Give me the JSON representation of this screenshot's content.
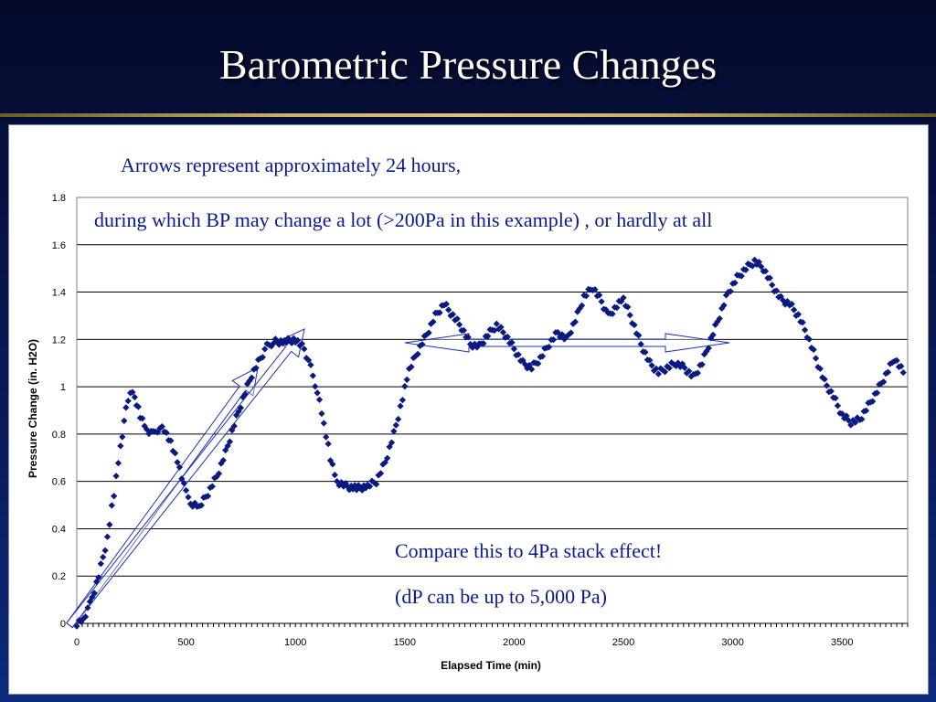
{
  "slide": {
    "title": "Barometric Pressure Changes"
  },
  "annotations": {
    "line1": "Arrows represent approximately 24 hours,",
    "line2": "during which BP may change a lot (>200Pa in this example) , or hardly at all",
    "compare": "Compare this to 4Pa stack effect!",
    "dp": "(dP can be up to 5,000 Pa)"
  },
  "colors": {
    "series": "#0a1a80",
    "annotation_text": "#0a1a90",
    "arrow": "#1e2fb0",
    "grid": "#000000"
  },
  "chart_data": {
    "type": "scatter",
    "xlabel": "Elapsed Time (min)",
    "ylabel": "Pressure Change (in. H2O)",
    "xlim": [
      0,
      3800
    ],
    "ylim": [
      0,
      1.8
    ],
    "x_ticks": [
      0,
      500,
      1000,
      1500,
      2000,
      2500,
      3000,
      3500
    ],
    "x_tick_labels": [
      "0",
      "500",
      "1000",
      "1500",
      "2000",
      "2500",
      "3000",
      "3500"
    ],
    "y_ticks": [
      0,
      0.2,
      0.4,
      0.6,
      0.8,
      1.0,
      1.2,
      1.4,
      1.6,
      1.8
    ],
    "y_tick_labels": [
      "0",
      "0.2",
      "0.4",
      "0.6",
      "0.8",
      "1",
      "1.2",
      "1.4",
      "1.6",
      "1.8"
    ],
    "grid": "horizontal",
    "marker": "diamond",
    "series": [
      {
        "values_xy": [
          [
            0,
            0
          ],
          [
            30,
            0.02
          ],
          [
            60,
            0.08
          ],
          [
            100,
            0.2
          ],
          [
            140,
            0.36
          ],
          [
            170,
            0.55
          ],
          [
            200,
            0.75
          ],
          [
            225,
            0.9
          ],
          [
            245,
            0.98
          ],
          [
            265,
            0.95
          ],
          [
            290,
            0.88
          ],
          [
            320,
            0.82
          ],
          [
            350,
            0.8
          ],
          [
            380,
            0.83
          ],
          [
            410,
            0.8
          ],
          [
            440,
            0.74
          ],
          [
            470,
            0.66
          ],
          [
            500,
            0.55
          ],
          [
            530,
            0.5
          ],
          [
            560,
            0.49
          ],
          [
            600,
            0.55
          ],
          [
            640,
            0.62
          ],
          [
            680,
            0.72
          ],
          [
            720,
            0.84
          ],
          [
            760,
            0.95
          ],
          [
            800,
            1.05
          ],
          [
            840,
            1.12
          ],
          [
            870,
            1.17
          ],
          [
            900,
            1.19
          ],
          [
            950,
            1.19
          ],
          [
            1000,
            1.2
          ],
          [
            1040,
            1.16
          ],
          [
            1070,
            1.08
          ],
          [
            1100,
            0.98
          ],
          [
            1130,
            0.84
          ],
          [
            1160,
            0.7
          ],
          [
            1190,
            0.6
          ],
          [
            1230,
            0.58
          ],
          [
            1280,
            0.57
          ],
          [
            1330,
            0.58
          ],
          [
            1370,
            0.6
          ],
          [
            1410,
            0.68
          ],
          [
            1450,
            0.8
          ],
          [
            1490,
            0.95
          ],
          [
            1520,
            1.07
          ],
          [
            1560,
            1.15
          ],
          [
            1600,
            1.22
          ],
          [
            1640,
            1.3
          ],
          [
            1680,
            1.35
          ],
          [
            1720,
            1.3
          ],
          [
            1760,
            1.25
          ],
          [
            1800,
            1.18
          ],
          [
            1840,
            1.17
          ],
          [
            1880,
            1.22
          ],
          [
            1920,
            1.26
          ],
          [
            1960,
            1.22
          ],
          [
            2000,
            1.16
          ],
          [
            2040,
            1.1
          ],
          [
            2080,
            1.08
          ],
          [
            2120,
            1.12
          ],
          [
            2160,
            1.18
          ],
          [
            2200,
            1.23
          ],
          [
            2240,
            1.2
          ],
          [
            2280,
            1.28
          ],
          [
            2320,
            1.38
          ],
          [
            2360,
            1.42
          ],
          [
            2400,
            1.36
          ],
          [
            2430,
            1.3
          ],
          [
            2470,
            1.34
          ],
          [
            2500,
            1.37
          ],
          [
            2540,
            1.28
          ],
          [
            2580,
            1.18
          ],
          [
            2620,
            1.1
          ],
          [
            2660,
            1.06
          ],
          [
            2700,
            1.08
          ],
          [
            2740,
            1.1
          ],
          [
            2780,
            1.08
          ],
          [
            2820,
            1.04
          ],
          [
            2860,
            1.1
          ],
          [
            2900,
            1.2
          ],
          [
            2940,
            1.3
          ],
          [
            2980,
            1.4
          ],
          [
            3020,
            1.46
          ],
          [
            3060,
            1.5
          ],
          [
            3100,
            1.53
          ],
          [
            3140,
            1.5
          ],
          [
            3180,
            1.43
          ],
          [
            3220,
            1.37
          ],
          [
            3260,
            1.35
          ],
          [
            3300,
            1.3
          ],
          [
            3340,
            1.22
          ],
          [
            3380,
            1.12
          ],
          [
            3420,
            1.02
          ],
          [
            3460,
            0.96
          ],
          [
            3500,
            0.88
          ],
          [
            3540,
            0.85
          ],
          [
            3580,
            0.86
          ],
          [
            3620,
            0.92
          ],
          [
            3660,
            0.98
          ],
          [
            3700,
            1.05
          ],
          [
            3740,
            1.12
          ],
          [
            3780,
            1.06
          ]
        ]
      }
    ]
  }
}
